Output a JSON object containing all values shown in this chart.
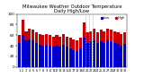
{
  "title": "Milwaukee Weather Outdoor Temperature\nDaily High/Low",
  "title_fontsize": 3.8,
  "highs": [
    60,
    90,
    68,
    72,
    70,
    65,
    62,
    60,
    62,
    60,
    58,
    60,
    58,
    62,
    58,
    55,
    52,
    50,
    55,
    85,
    65,
    68,
    72,
    65,
    70,
    68,
    72,
    70,
    68,
    65,
    62,
    65
  ],
  "lows": [
    45,
    60,
    50,
    52,
    50,
    45,
    42,
    40,
    42,
    40,
    38,
    40,
    38,
    42,
    38,
    35,
    32,
    30,
    35,
    55,
    45,
    48,
    50,
    45,
    48,
    45,
    50,
    48,
    46,
    44,
    40,
    44
  ],
  "high_color": "#cc0000",
  "low_color": "#0000cc",
  "bg_color": "#ffffff",
  "ylim": [
    0,
    100
  ],
  "yticks": [
    0,
    20,
    40,
    60,
    80,
    100
  ],
  "vline_positions": [
    19.5,
    20.5,
    21.5
  ],
  "bar_width": 0.42,
  "legend_high": "·· High",
  "legend_low": "·· Low"
}
